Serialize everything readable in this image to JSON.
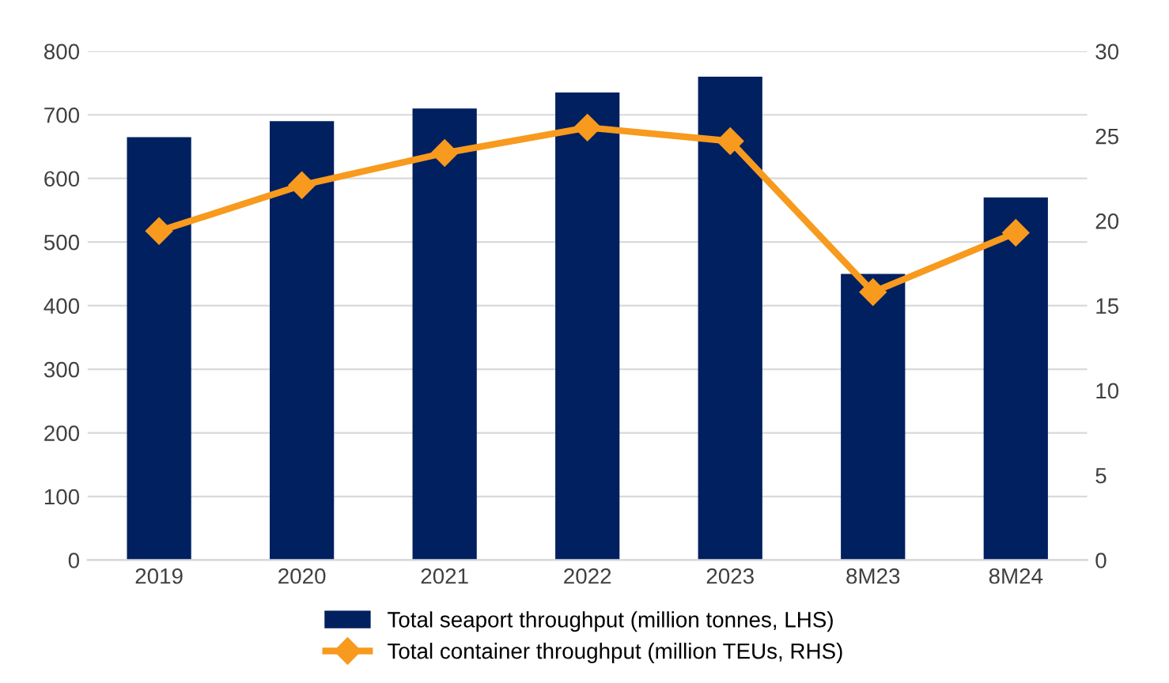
{
  "chart_data": {
    "type": "bar",
    "categories": [
      "2019",
      "2020",
      "2021",
      "2022",
      "2023",
      "8M23",
      "8M24"
    ],
    "series": [
      {
        "name": "Total seaport throughput (million tonnes, LHS)",
        "color": "#002060",
        "values": [
          665,
          690,
          710,
          735,
          760,
          450,
          570
        ]
      },
      {
        "name": "Total container throughput (million TEUs, RHS)",
        "type": "line",
        "axis": "y2",
        "color": "#f79a1e",
        "marker": "diamond",
        "values": [
          19.4,
          22.1,
          24.0,
          25.5,
          24.7,
          15.8,
          19.3
        ]
      }
    ],
    "ylim": [
      0,
      800
    ],
    "yticks": [
      0,
      100,
      200,
      300,
      400,
      500,
      600,
      700,
      800
    ],
    "y2lim": [
      0,
      30
    ],
    "y2ticks": [
      0,
      5,
      10,
      15,
      20,
      25,
      30
    ],
    "grid": "y",
    "legend": "bottom"
  }
}
